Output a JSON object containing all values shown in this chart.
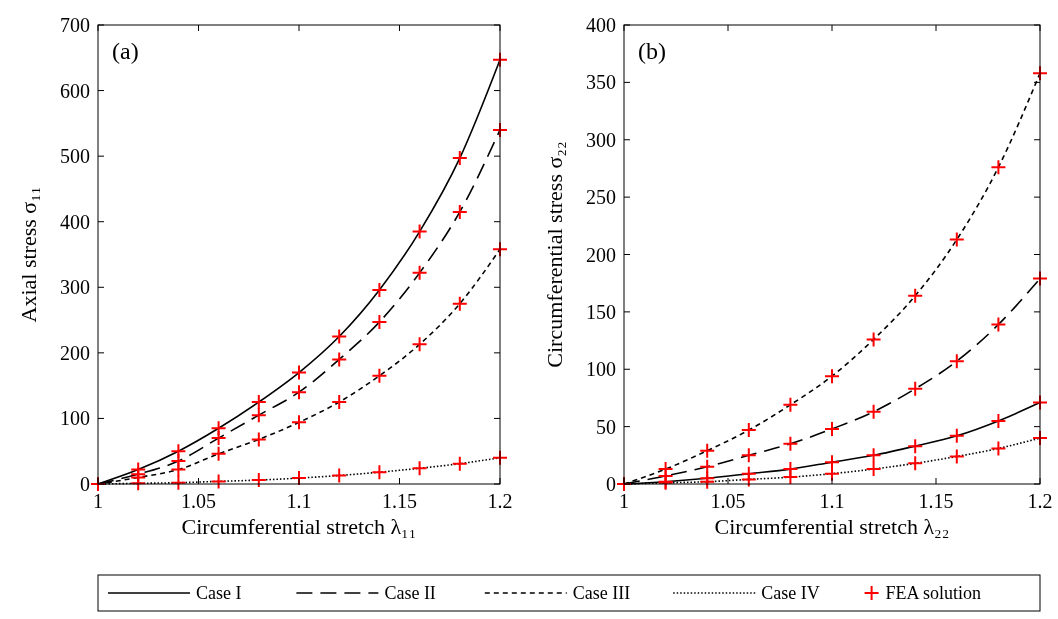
{
  "chart_data": [
    {
      "type": "line",
      "ylabel": "Axial stress σ₁₁",
      "xlabel": "Circumferential stretch λ₁₁",
      "annotations": [
        "(a)"
      ],
      "xlim": [
        1,
        1.2
      ],
      "xticks": [
        1,
        1.05,
        1.1,
        1.15,
        1.2
      ],
      "ylim": [
        0,
        700
      ],
      "yticks": [
        0,
        100,
        200,
        300,
        400,
        500,
        600,
        700
      ],
      "legend": "bottom",
      "x": [
        1,
        1.02,
        1.04,
        1.06,
        1.08,
        1.1,
        1.12,
        1.14,
        1.16,
        1.18,
        1.2
      ],
      "series": [
        {
          "name": "Case I",
          "color": "#000000",
          "line_style": "solid",
          "values": [
            0,
            22,
            50,
            85,
            125,
            170,
            225,
            296,
            385,
            497,
            647
          ]
        },
        {
          "name": "Case II",
          "color": "#000000",
          "line_style": "longdash",
          "values": [
            0,
            15,
            35,
            70,
            105,
            140,
            190,
            247,
            322,
            415,
            540
          ]
        },
        {
          "name": "Case III",
          "color": "#000000",
          "line_style": "dashed",
          "values": [
            0,
            10,
            22,
            46,
            68,
            94,
            125,
            165,
            213,
            275,
            358
          ]
        },
        {
          "name": "Case IV",
          "color": "#000000",
          "line_style": "dotted",
          "values": [
            0,
            1,
            2,
            4,
            6,
            9,
            13,
            18,
            24,
            31,
            40
          ]
        },
        {
          "name": "FEA solution",
          "type": "scatter",
          "marker": "cross",
          "color": "#ff0000",
          "x": [
            1,
            1.02,
            1.04,
            1.06,
            1.08,
            1.1,
            1.12,
            1.14,
            1.16,
            1.18,
            1.2,
            1.02,
            1.04,
            1.06,
            1.08,
            1.1,
            1.12,
            1.14,
            1.16,
            1.18,
            1.2,
            1.02,
            1.04,
            1.06,
            1.08,
            1.1,
            1.12,
            1.14,
            1.16,
            1.18,
            1.2,
            1.02,
            1.04,
            1.06,
            1.08,
            1.1,
            1.12,
            1.14,
            1.16,
            1.18,
            1.2
          ],
          "values": [
            0,
            22,
            50,
            85,
            125,
            170,
            225,
            296,
            385,
            497,
            647,
            15,
            35,
            70,
            105,
            140,
            190,
            247,
            322,
            415,
            540,
            10,
            22,
            46,
            68,
            94,
            125,
            165,
            213,
            275,
            358,
            1,
            2,
            4,
            6,
            9,
            13,
            18,
            24,
            31,
            40
          ]
        }
      ]
    },
    {
      "type": "line",
      "ylabel": "Circumferential stress σ₂₂",
      "xlabel": "Circumferential stretch   λ₂₂",
      "annotations": [
        "(b)"
      ],
      "xlim": [
        1,
        1.2
      ],
      "xticks": [
        1,
        1.05,
        1.1,
        1.15,
        1.2
      ],
      "ylim": [
        0,
        400
      ],
      "yticks": [
        0,
        50,
        100,
        150,
        200,
        250,
        300,
        350,
        400
      ],
      "x": [
        1,
        1.02,
        1.04,
        1.06,
        1.08,
        1.1,
        1.12,
        1.14,
        1.16,
        1.18,
        1.2
      ],
      "series": [
        {
          "color": "#000000",
          "line_style": "solid",
          "values": [
            0,
            2,
            5,
            9,
            13,
            19,
            25,
            33,
            42,
            55,
            71
          ]
        },
        {
          "color": "#000000",
          "line_style": "longdash",
          "values": [
            0,
            7,
            15,
            25,
            35,
            48,
            63,
            83,
            107,
            139,
            179
          ]
        },
        {
          "color": "#000000",
          "line_style": "dashed",
          "values": [
            0,
            13,
            29,
            47,
            69,
            94,
            126,
            164,
            213,
            276,
            358
          ]
        },
        {
          "color": "#000000",
          "line_style": "dotted",
          "values": [
            0,
            1,
            2,
            4,
            6,
            9,
            13,
            18,
            24,
            31,
            40
          ]
        },
        {
          "type": "scatter",
          "marker": "cross",
          "color": "#ff0000",
          "x": [
            1,
            1.02,
            1.04,
            1.06,
            1.08,
            1.1,
            1.12,
            1.14,
            1.16,
            1.18,
            1.2,
            1.02,
            1.04,
            1.06,
            1.08,
            1.1,
            1.12,
            1.14,
            1.16,
            1.18,
            1.2,
            1.02,
            1.04,
            1.06,
            1.08,
            1.1,
            1.12,
            1.14,
            1.16,
            1.18,
            1.2,
            1.02,
            1.04,
            1.06,
            1.08,
            1.1,
            1.12,
            1.14,
            1.16,
            1.18,
            1.2
          ],
          "values": [
            0,
            2,
            5,
            9,
            13,
            19,
            25,
            33,
            42,
            55,
            71,
            7,
            15,
            25,
            35,
            48,
            63,
            83,
            107,
            139,
            179,
            13,
            29,
            47,
            69,
            94,
            126,
            164,
            213,
            276,
            358,
            1,
            2,
            4,
            6,
            9,
            13,
            18,
            24,
            31,
            40
          ]
        }
      ]
    }
  ]
}
